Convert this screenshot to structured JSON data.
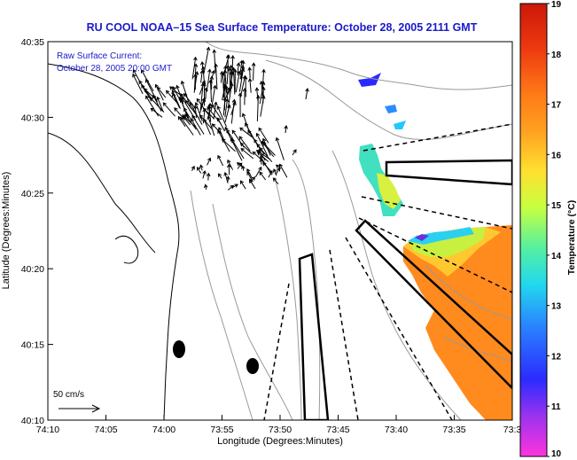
{
  "title": "RU COOL  NOAA–15  Sea Surface Temperature:  October 28, 2005 2111 GMT",
  "current_label_1": "Raw Surface Current:",
  "current_label_2": "October 28, 2005 20:00 GMT",
  "scale_label": "50 cm/s",
  "xlabel": "Longitude (Degrees:Minutes)",
  "ylabel": "Latitude (Degrees:Minutes)",
  "x_ticks": [
    "74:10",
    "74:05",
    "74:00",
    "73:55",
    "73:50",
    "73:45",
    "73:40",
    "73:35",
    "73:3"
  ],
  "y_ticks": [
    "40:35",
    "40:30",
    "40:25",
    "40:20",
    "40:15",
    "40:10"
  ],
  "colorbar": {
    "label": "Temperature (°C)",
    "ticks": [
      "19",
      "18",
      "17",
      "16",
      "15",
      "14",
      "13",
      "12",
      "11",
      "10"
    ],
    "min": 10,
    "max": 19
  },
  "colors": {
    "title": "#1a1acc",
    "annotation": "#1a1acc",
    "land_contour": "#000000",
    "bathymetry": "#9a9a9a"
  }
}
